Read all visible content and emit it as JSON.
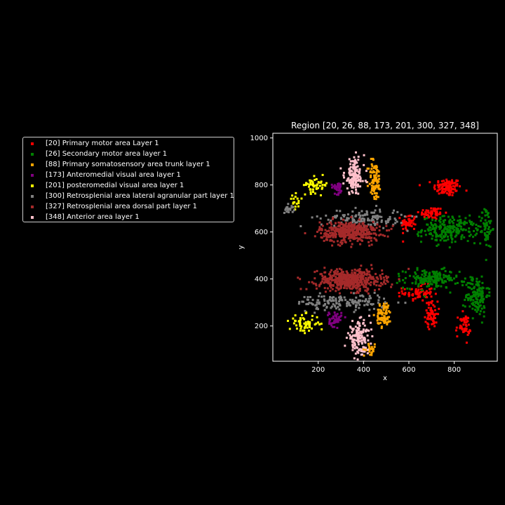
{
  "chart_data": {
    "type": "scatter",
    "title": "Region [20, 26, 88, 173, 201, 300, 327, 348]",
    "xlabel": "x",
    "ylabel": "y",
    "xlim": [
      0,
      990
    ],
    "ylim": [
      50,
      1020
    ],
    "xticks": [
      "200",
      "400",
      "600",
      "800"
    ],
    "xtick_values": [
      200,
      400,
      600,
      800
    ],
    "yticks": [
      "200",
      "400",
      "600",
      "800",
      "1000"
    ],
    "ytick_values": [
      200,
      400,
      600,
      800,
      1000
    ],
    "grid": false,
    "legend_position": "left-outside",
    "background": "#000000",
    "series": [
      {
        "name": "[20] Primary motor area Layer 1",
        "color": "#ff0000",
        "clusters": [
          {
            "cx": 770,
            "cy": 790,
            "sx": 55,
            "sy": 35,
            "n": 110
          },
          {
            "cx": 700,
            "cy": 680,
            "sx": 50,
            "sy": 25,
            "n": 60
          },
          {
            "cx": 600,
            "cy": 640,
            "sx": 30,
            "sy": 35,
            "n": 50
          },
          {
            "cx": 640,
            "cy": 340,
            "sx": 60,
            "sy": 30,
            "n": 70
          },
          {
            "cx": 700,
            "cy": 250,
            "sx": 25,
            "sy": 50,
            "n": 60
          },
          {
            "cx": 840,
            "cy": 200,
            "sx": 30,
            "sy": 45,
            "n": 50
          }
        ]
      },
      {
        "name": "[26] Secondary motor area layer 1",
        "color": "#008000",
        "clusters": [
          {
            "cx": 780,
            "cy": 610,
            "sx": 110,
            "sy": 50,
            "n": 220
          },
          {
            "cx": 700,
            "cy": 400,
            "sx": 110,
            "sy": 35,
            "n": 170
          },
          {
            "cx": 900,
            "cy": 330,
            "sx": 45,
            "sy": 80,
            "n": 140
          },
          {
            "cx": 940,
            "cy": 620,
            "sx": 25,
            "sy": 80,
            "n": 60
          }
        ]
      },
      {
        "name": "[88] Primary somatosensory area trunk layer 1",
        "color": "#ffa500",
        "clusters": [
          {
            "cx": 450,
            "cy": 820,
            "sx": 25,
            "sy": 80,
            "n": 90
          },
          {
            "cx": 490,
            "cy": 250,
            "sx": 30,
            "sy": 50,
            "n": 80
          },
          {
            "cx": 430,
            "cy": 100,
            "sx": 25,
            "sy": 20,
            "n": 25
          }
        ]
      },
      {
        "name": "[173] Anteromedial visual area layer 1",
        "color": "#800080",
        "clusters": [
          {
            "cx": 285,
            "cy": 790,
            "sx": 25,
            "sy": 25,
            "n": 35
          },
          {
            "cx": 275,
            "cy": 230,
            "sx": 25,
            "sy": 30,
            "n": 45
          }
        ]
      },
      {
        "name": "[201] posteromedial visual area layer 1",
        "color": "#ffff00",
        "clusters": [
          {
            "cx": 190,
            "cy": 800,
            "sx": 50,
            "sy": 30,
            "n": 50
          },
          {
            "cx": 100,
            "cy": 720,
            "sx": 25,
            "sy": 30,
            "n": 15
          },
          {
            "cx": 140,
            "cy": 210,
            "sx": 60,
            "sy": 35,
            "n": 60
          }
        ]
      },
      {
        "name": "[300] Retrosplenial area lateral agranular part layer 1",
        "color": "#808080",
        "clusters": [
          {
            "cx": 400,
            "cy": 660,
            "sx": 170,
            "sy": 35,
            "n": 140
          },
          {
            "cx": 300,
            "cy": 300,
            "sx": 180,
            "sy": 30,
            "n": 150
          },
          {
            "cx": 70,
            "cy": 700,
            "sx": 20,
            "sy": 20,
            "n": 20
          }
        ]
      },
      {
        "name": "[327] Retrosplenial area dorsal part layer 1",
        "color": "#a52a2a",
        "clusters": [
          {
            "cx": 340,
            "cy": 600,
            "sx": 120,
            "sy": 40,
            "n": 420
          },
          {
            "cx": 340,
            "cy": 395,
            "sx": 130,
            "sy": 40,
            "n": 480
          }
        ]
      },
      {
        "name": "[348] Anterior area layer 1",
        "color": "#ffc0cb",
        "clusters": [
          {
            "cx": 360,
            "cy": 840,
            "sx": 40,
            "sy": 70,
            "n": 150
          },
          {
            "cx": 380,
            "cy": 150,
            "sx": 45,
            "sy": 60,
            "n": 140
          }
        ]
      }
    ]
  }
}
